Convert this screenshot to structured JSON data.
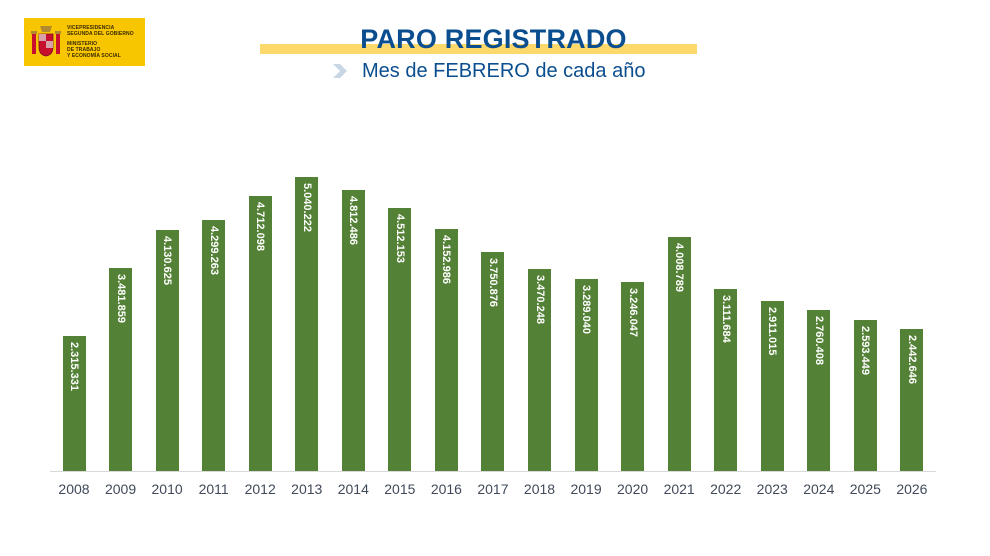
{
  "header": {
    "logo": {
      "lines_top": [
        "VICEPRESIDENCIA",
        "SEGUNDA DEL GOBIERNO"
      ],
      "lines_bottom": [
        "MINISTERIO",
        "DE TRABAJO",
        "Y ECONOMÍA SOCIAL"
      ],
      "background": "#f7c600",
      "icon": "spain-coat-of-arms-icon"
    },
    "title": "PARO REGISTRADO",
    "subtitle": "Mes de FEBRERO de cada año",
    "title_color": "#0b4e8f",
    "highlight_color": "#fcd96a",
    "chevron_icon": "chevron-right-icon"
  },
  "chart_data": {
    "type": "bar",
    "title": "PARO REGISTRADO",
    "subtitle": "Mes de FEBRERO de cada año",
    "xlabel": "",
    "ylabel": "",
    "categories": [
      "2008",
      "2009",
      "2010",
      "2011",
      "2012",
      "2013",
      "2014",
      "2015",
      "2016",
      "2017",
      "2018",
      "2019",
      "2020",
      "2021",
      "2022",
      "2023",
      "2024",
      "2025",
      "2026"
    ],
    "values": [
      2315331,
      3481859,
      4130625,
      4299263,
      4712098,
      5040222,
      4812486,
      4512153,
      4152986,
      3750876,
      3470248,
      3289040,
      3246047,
      4008789,
      3111684,
      2911015,
      2760408,
      2593449,
      2442646
    ],
    "labels": [
      "2.315.331",
      "3.481.859",
      "4.130.625",
      "4.299.263",
      "4.712.098",
      "5.040.222",
      "4.812.486",
      "4.512.153",
      "4.152.986",
      "3.750.876",
      "3.470.248",
      "3.289.040",
      "3.246.047",
      "4.008.789",
      "3.111.684",
      "2.911.015",
      "2.760.408",
      "2.593.449",
      "2.442.646"
    ],
    "bar_color": "#538135",
    "label_color": "#ffffff",
    "grid": false,
    "legend": null,
    "ylim": [
      0,
      5040222
    ]
  }
}
